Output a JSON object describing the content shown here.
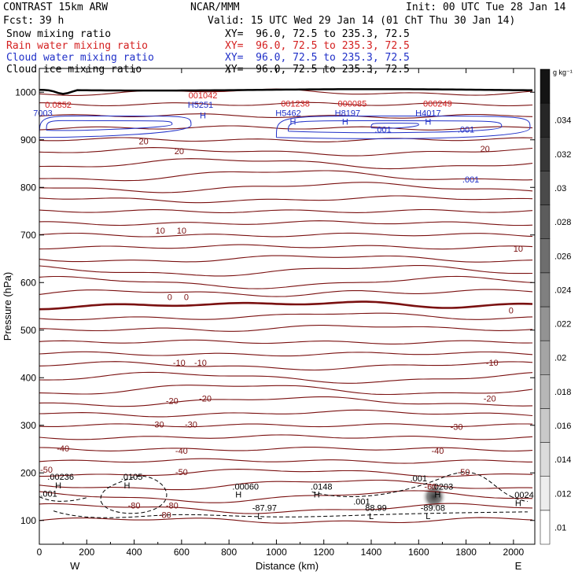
{
  "header": {
    "model": "CONTRAST 15km ARW",
    "fcst_label": "Fcst:",
    "fcst_value": "39 h",
    "center": "NCAR/MMM",
    "init": "Init: 00 UTC Tue 28 Jan 14",
    "valid": "Valid: 15 UTC Wed 29 Jan 14 (01 ChT Thu 30 Jan 14)"
  },
  "fields": [
    {
      "label": "Snow mixing ratio",
      "xy": "XY=  96.0, 72.5 to 235.3, 72.5",
      "color": "#000000"
    },
    {
      "label": "Rain water mixing ratio",
      "xy": "XY=  96.0, 72.5 to 235.3, 72.5",
      "color": "#d42020"
    },
    {
      "label": "Cloud water mixing ratio",
      "xy": "XY=  96.0, 72.5 to 235.3, 72.5",
      "color": "#2030c8"
    },
    {
      "label": "Cloud ice mixing ratio",
      "xy": "XY=  96.0, 72.5 to 235.3, 72.5",
      "color": "#000000"
    }
  ],
  "chart_data": {
    "type": "contour",
    "xlabel": "Distance (km)",
    "ylabel": "Pressure (hPa)",
    "xlim": [
      0,
      2090
    ],
    "ylim": [
      1050,
      50
    ],
    "x_ticks": [
      0,
      200,
      400,
      600,
      800,
      1000,
      1200,
      1400,
      1600,
      1800,
      2000
    ],
    "y_ticks": [
      100,
      200,
      300,
      400,
      500,
      600,
      700,
      800,
      900,
      1000
    ],
    "x_end_labels": {
      "left": "W",
      "right": "E"
    },
    "temperature_labels": [
      {
        "text": "-80",
        "x": 530,
        "p": 110
      },
      {
        "text": "-80",
        "x": 400,
        "p": 130
      },
      {
        "text": "-80",
        "x": 560,
        "p": 130
      },
      {
        "text": "-60",
        "x": 1650,
        "p": 170
      },
      {
        "text": "-50",
        "x": 30,
        "p": 205
      },
      {
        "text": "-50",
        "x": 600,
        "p": 200
      },
      {
        "text": "-50",
        "x": 1790,
        "p": 200
      },
      {
        "text": "-40",
        "x": 100,
        "p": 250
      },
      {
        "text": "-40",
        "x": 600,
        "p": 245
      },
      {
        "text": "-40",
        "x": 1680,
        "p": 245
      },
      {
        "text": "-30",
        "x": 500,
        "p": 300
      },
      {
        "text": "-30",
        "x": 640,
        "p": 300
      },
      {
        "text": "-30",
        "x": 1760,
        "p": 295
      },
      {
        "text": "-20",
        "x": 560,
        "p": 350
      },
      {
        "text": "-20",
        "x": 700,
        "p": 355
      },
      {
        "text": "-20",
        "x": 1900,
        "p": 355
      },
      {
        "text": "-10",
        "x": 590,
        "p": 430
      },
      {
        "text": "-10",
        "x": 680,
        "p": 430
      },
      {
        "text": "-10",
        "x": 1910,
        "p": 430
      },
      {
        "text": "0",
        "x": 550,
        "p": 568
      },
      {
        "text": "0",
        "x": 620,
        "p": 568
      },
      {
        "text": "0",
        "x": 1990,
        "p": 540
      },
      {
        "text": "10",
        "x": 510,
        "p": 708
      },
      {
        "text": "10",
        "x": 600,
        "p": 708
      },
      {
        "text": "10",
        "x": 2020,
        "p": 670
      },
      {
        "text": "20",
        "x": 590,
        "p": 875
      },
      {
        "text": "20",
        "x": 440,
        "p": 895
      },
      {
        "text": "20",
        "x": 1880,
        "p": 880
      }
    ],
    "snow_ice_labels": [
      {
        "text": "L",
        "x": 930,
        "p": 108
      },
      {
        "text": "-87.97",
        "x": 950,
        "p": 125
      },
      {
        "text": "L",
        "x": 1400,
        "p": 108
      },
      {
        "text": "88.99",
        "x": 1420,
        "p": 125
      },
      {
        "text": "L",
        "x": 1640,
        "p": 108
      },
      {
        "text": "-89.08",
        "x": 1660,
        "p": 125
      },
      {
        "text": ".001",
        "x": 40,
        "p": 155
      },
      {
        "text": ".001",
        "x": 1360,
        "p": 138
      },
      {
        "text": ".001",
        "x": 1600,
        "p": 187
      },
      {
        "text": "H",
        "x": 80,
        "p": 172
      },
      {
        "text": ".00236",
        "x": 90,
        "p": 190
      },
      {
        "text": "H",
        "x": 370,
        "p": 172
      },
      {
        "text": ".0105",
        "x": 390,
        "p": 190
      },
      {
        "text": "H",
        "x": 840,
        "p": 153
      },
      {
        "text": ".00060",
        "x": 870,
        "p": 170
      },
      {
        "text": "H",
        "x": 1170,
        "p": 153
      },
      {
        "text": ".0148",
        "x": 1190,
        "p": 170
      },
      {
        "text": "H",
        "x": 1680,
        "p": 153
      },
      {
        "text": ".0203",
        "x": 1700,
        "p": 170
      },
      {
        "text": "H",
        "x": 2020,
        "p": 135
      },
      {
        "text": ".0024",
        "x": 2040,
        "p": 152
      }
    ],
    "cloud_water_labels": [
      {
        "text": ".001",
        "x": 1820,
        "p": 815
      },
      {
        "text": ".001",
        "x": 1450,
        "p": 920
      },
      {
        "text": ".001",
        "x": 1800,
        "p": 920
      },
      {
        "text": "H",
        "x": 690,
        "p": 950
      },
      {
        "text": "H",
        "x": 1070,
        "p": 937
      },
      {
        "text": "H",
        "x": 1290,
        "p": 937
      },
      {
        "text": "H",
        "x": 1640,
        "p": 937
      },
      {
        "text": "7003",
        "x": 15,
        "p": 955
      },
      {
        "text": "H5251",
        "x": 680,
        "p": 972
      },
      {
        "text": "H5462",
        "x": 1050,
        "p": 955
      },
      {
        "text": "H8197",
        "x": 1300,
        "p": 955
      },
      {
        "text": "H4017",
        "x": 1640,
        "p": 955
      }
    ],
    "rain_labels": [
      {
        "text": "0.0852",
        "x": 80,
        "p": 972
      },
      {
        "text": "001042",
        "x": 690,
        "p": 992
      },
      {
        "text": "001238",
        "x": 1080,
        "p": 975
      },
      {
        "text": "000085",
        "x": 1320,
        "p": 975
      },
      {
        "text": "000249",
        "x": 1680,
        "p": 975
      }
    ],
    "max_ice_mixing_ratio": 0.0203,
    "colorbar": {
      "units": "g kg⁻¹",
      "labels": [
        ".01",
        ".012",
        ".014",
        ".016",
        ".018",
        ".02",
        ".022",
        ".024",
        ".026",
        ".028",
        ".03",
        ".032",
        ".034"
      ]
    },
    "colors": {
      "temperature": "#7a1010",
      "snow": "#000000",
      "rain": "#d42020",
      "cloud_water": "#2030c8",
      "ground": "#000000"
    }
  }
}
